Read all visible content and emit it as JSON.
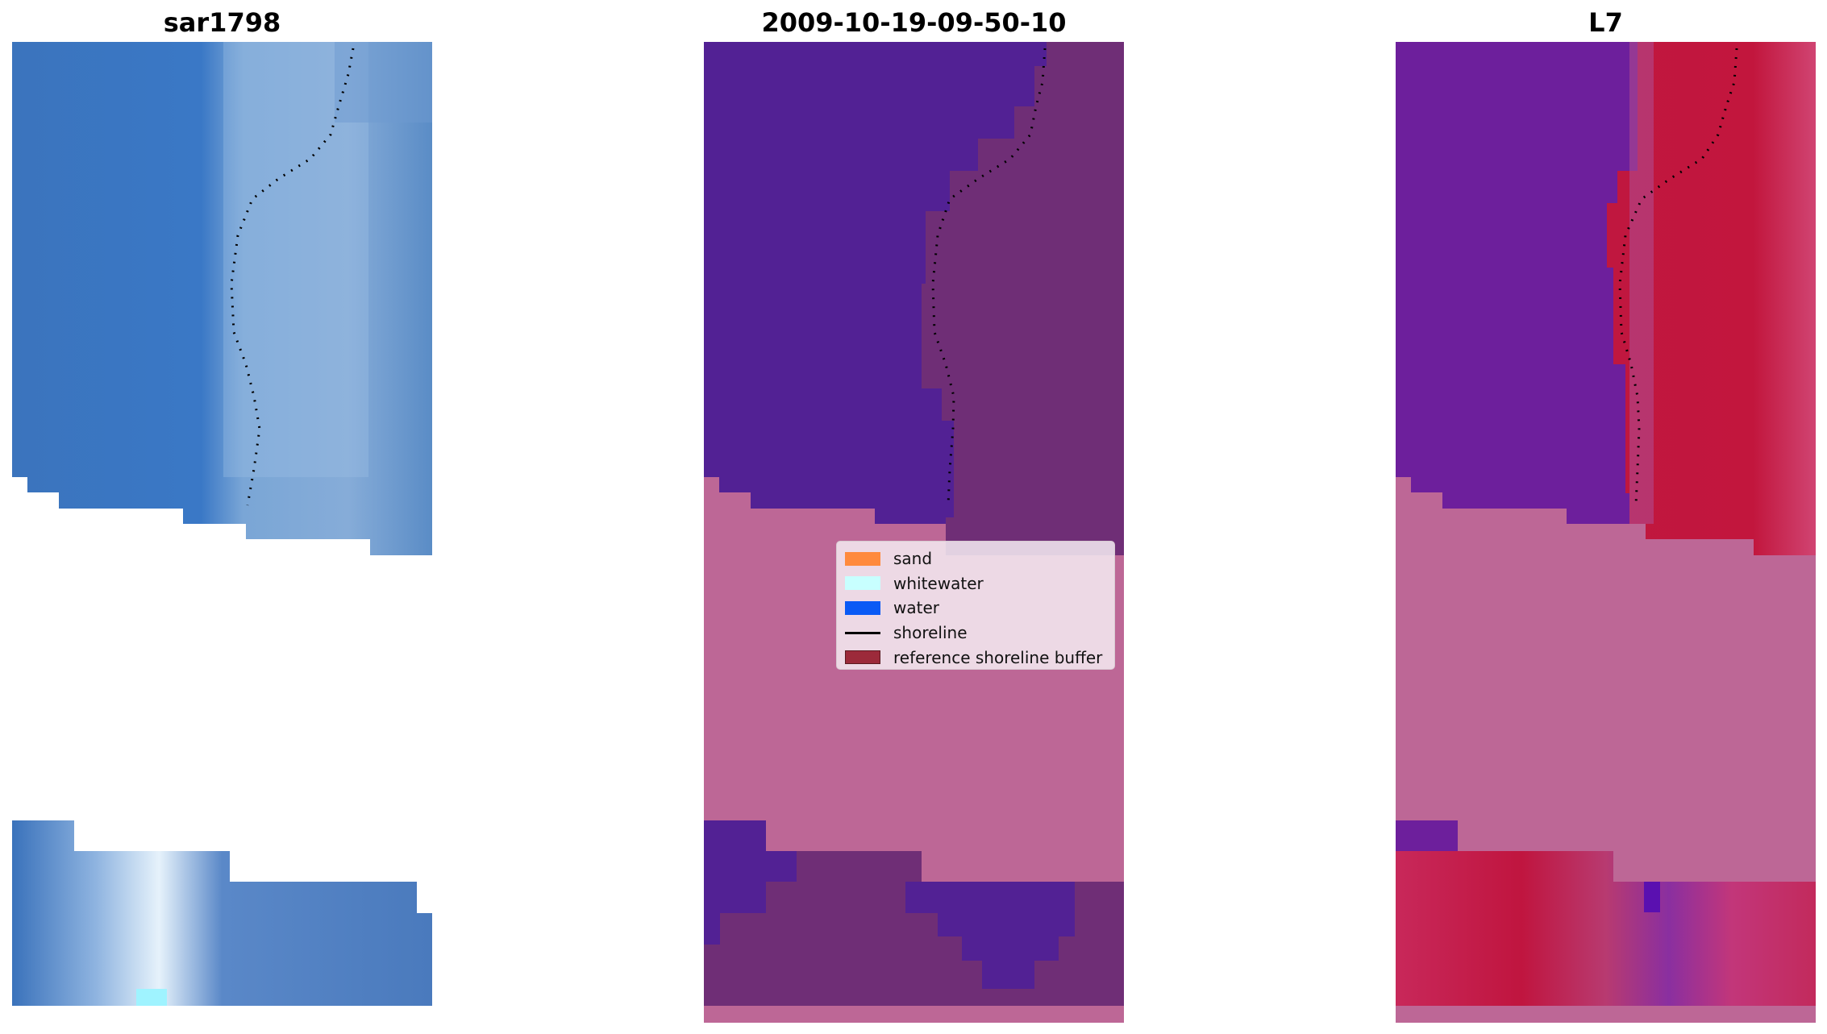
{
  "panels": [
    {
      "title": "sar1798"
    },
    {
      "title": "2009-10-19-09-50-10"
    },
    {
      "title": "L7"
    }
  ],
  "legend": [
    {
      "label": "sand",
      "color": "#ff8a3d",
      "kind": "patch"
    },
    {
      "label": "whitewater",
      "color": "#c8ffff",
      "kind": "patch"
    },
    {
      "label": "water",
      "color": "#0a5af5",
      "kind": "patch"
    },
    {
      "label": "shoreline",
      "color": "#000000",
      "kind": "line"
    },
    {
      "label": "reference shoreline buffer",
      "color": "#9c2a3a",
      "kind": "patch"
    }
  ],
  "colors": {
    "rgb_water": "#3a78c0",
    "rgb_sand": "#7fa6d8",
    "classified_water": "#522194",
    "classified_land": "#6f2e76",
    "buffer_mask": "#bd6796",
    "index_water": "#6d1f9c",
    "index_land": "#c0173f",
    "shoreline_points": "#000000"
  }
}
